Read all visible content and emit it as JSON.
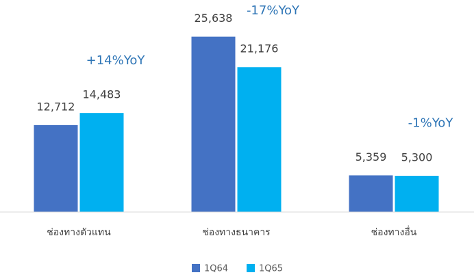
{
  "chart_data": {
    "type": "bar",
    "categories": [
      "ช่องทางตัวแทน",
      "ช่องทางธนาคาร",
      "ช่องทางอื่น"
    ],
    "series": [
      {
        "name": "1Q64",
        "color": "#4472c4",
        "values": [
          12712,
          25638,
          5359
        ],
        "value_labels": [
          "12,712",
          "25,638",
          "5,359"
        ]
      },
      {
        "name": "1Q65",
        "color": "#00b0f0",
        "values": [
          14483,
          21176,
          5300
        ],
        "value_labels": [
          "14,483",
          "21,176",
          "5,300"
        ]
      }
    ],
    "annotations": [
      "+14%YoY",
      "-17%YoY",
      "-1%YoY"
    ],
    "ylim": [
      0,
      30000
    ]
  }
}
